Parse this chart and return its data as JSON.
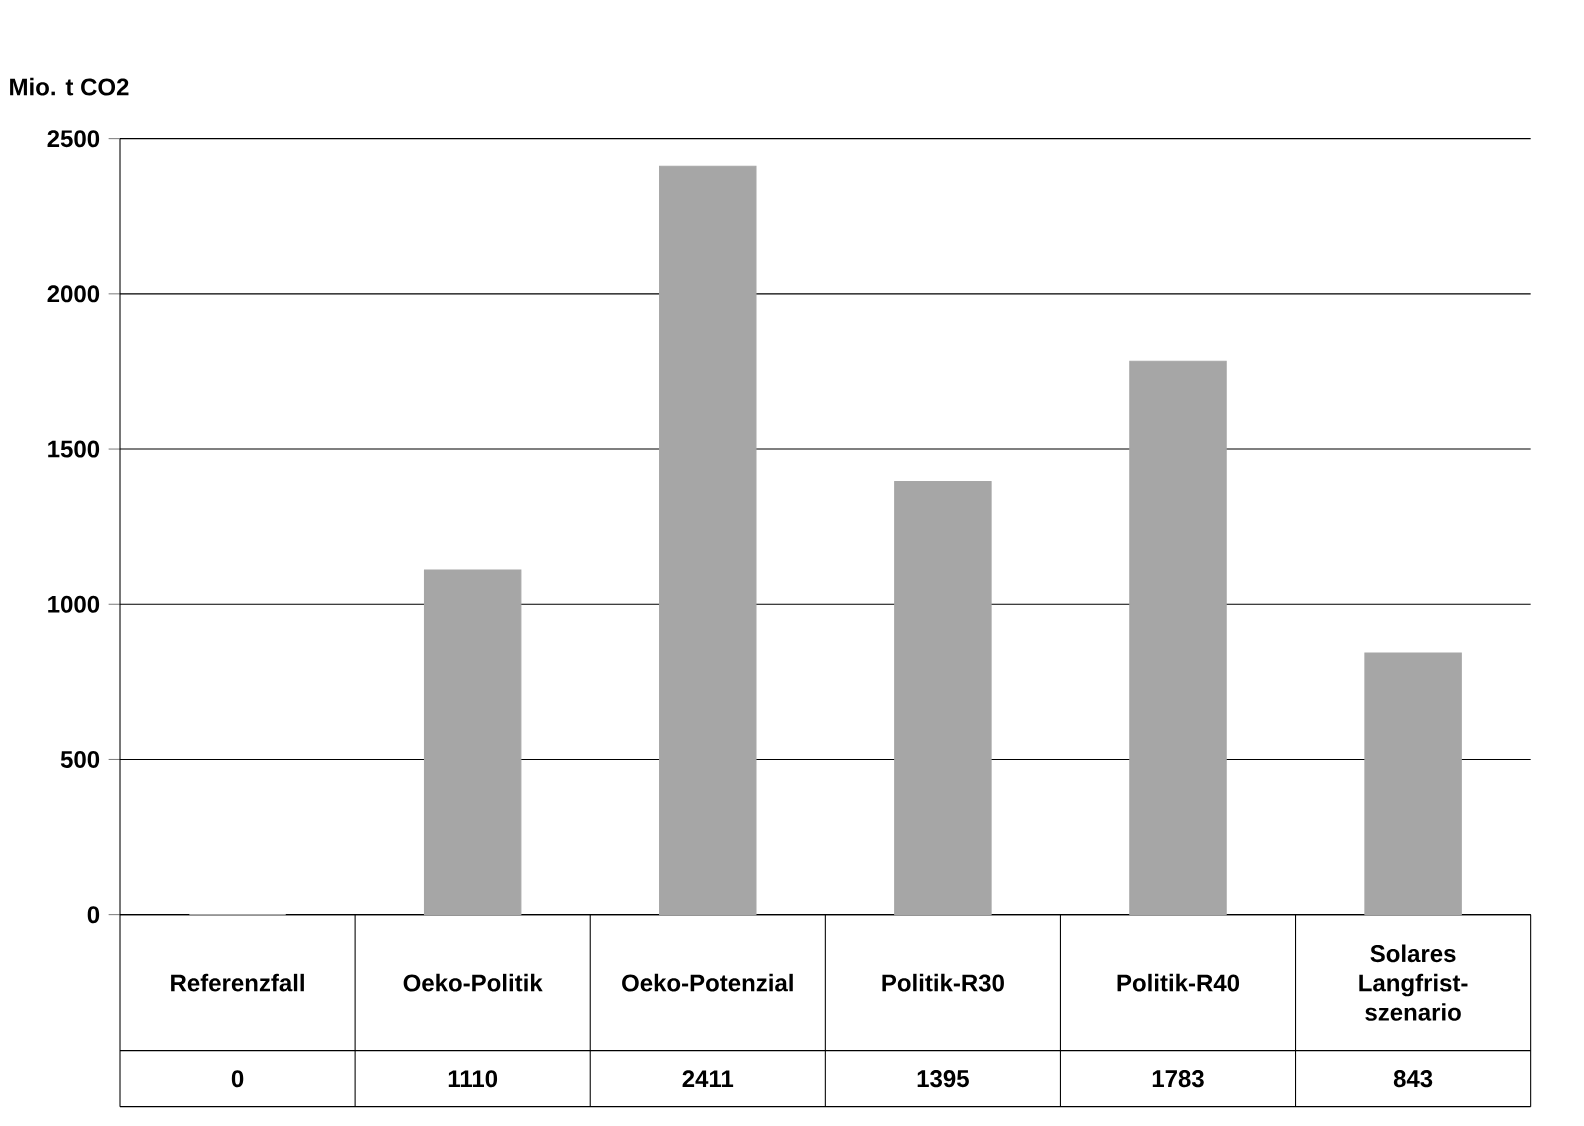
{
  "chart_data": {
    "type": "bar",
    "ylabel": "Mio. t CO2",
    "categories": [
      "Referenzfall",
      "Oeko-Politik",
      "Oeko-Potenzial",
      "Politik-R30",
      "Politik-R40",
      "Solares Langfrist-szenario"
    ],
    "values": [
      0,
      1110,
      2411,
      1395,
      1783,
      843
    ],
    "color": "#a6a6a6",
    "ylim": [
      0,
      2500
    ],
    "yticks": [
      0,
      500,
      1000,
      1500,
      2000,
      2500
    ],
    "grid": "y",
    "data_labels": true
  }
}
